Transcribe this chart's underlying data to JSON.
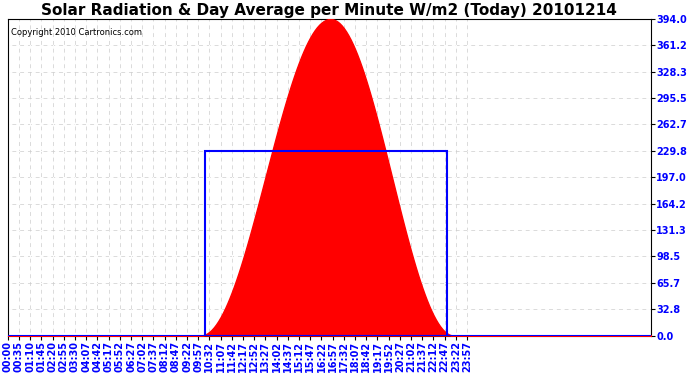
{
  "title": "Solar Radiation & Day Average per Minute W/m2 (Today) 20101214",
  "copyright": "Copyright 2010 Cartronics.com",
  "yticks": [
    0.0,
    32.8,
    65.7,
    98.5,
    131.3,
    164.2,
    197.0,
    229.8,
    262.7,
    295.5,
    328.3,
    361.2,
    394.0
  ],
  "ymax": 394.0,
  "ymin": 0.0,
  "fill_color": "#FF0000",
  "avg_rect_color": "#0000FF",
  "avg_value": 229.8,
  "background_color": "#FFFFFF",
  "solar_peak": 394.0,
  "solar_peak_time_idx": 144,
  "solar_start_idx": 86,
  "solar_end_idx": 199,
  "avg_start_idx": 88,
  "avg_end_idx": 196,
  "n_points": 288,
  "title_fontsize": 11,
  "tick_fontsize": 7,
  "copyright_fontsize": 6,
  "x_tick_labels": [
    "00:00",
    "00:35",
    "01:10",
    "01:45",
    "02:20",
    "02:55",
    "03:30",
    "04:07",
    "04:42",
    "05:17",
    "05:52",
    "06:27",
    "07:02",
    "07:37",
    "08:12",
    "08:47",
    "09:22",
    "09:57",
    "10:32",
    "11:07",
    "11:42",
    "12:17",
    "12:52",
    "13:27",
    "14:02",
    "14:37",
    "15:12",
    "15:47",
    "16:22",
    "16:57",
    "17:32",
    "18:07",
    "18:42",
    "19:17",
    "19:52",
    "20:27",
    "21:02",
    "21:37",
    "22:12",
    "22:47",
    "23:22",
    "23:57"
  ],
  "x_tick_positions": [
    0,
    5,
    10,
    15,
    20,
    25,
    30,
    35,
    40,
    45,
    50,
    55,
    60,
    65,
    70,
    75,
    80,
    85,
    90,
    95,
    100,
    105,
    110,
    115,
    120,
    125,
    130,
    135,
    140,
    145,
    150,
    155,
    160,
    165,
    170,
    175,
    180,
    185,
    190,
    195,
    200,
    205
  ],
  "spine_color": "#000000",
  "grid_gray_color": "#CCCCCC",
  "dashed_white_color": "#FFFFFF",
  "tick_color": "#0000FF",
  "figwidth": 6.9,
  "figheight": 3.75,
  "dpi": 100
}
